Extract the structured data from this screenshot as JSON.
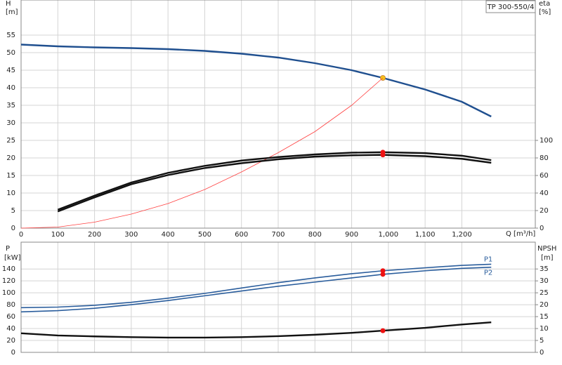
{
  "chart_data": [
    {
      "type": "line",
      "title": "TP 300-550/4",
      "y_label": "H",
      "y_unit": "[m]",
      "y2_label": "eta",
      "y2_unit": "[%]",
      "x_label": "Q [m³/h]",
      "x": [
        0,
        100,
        200,
        300,
        400,
        500,
        600,
        700,
        800,
        900,
        985,
        1100,
        1200,
        1280
      ],
      "xlim": [
        0,
        1400
      ],
      "xticks": [
        0,
        100,
        200,
        300,
        400,
        500,
        600,
        700,
        800,
        900,
        {
          "value": 1000,
          "label": "1,000"
        },
        {
          "value": 1100,
          "label": "1,100"
        },
        {
          "value": 1200,
          "label": "1,200"
        }
      ],
      "ylim": [
        0,
        65
      ],
      "yticks": [
        0,
        5,
        10,
        15,
        20,
        25,
        30,
        35,
        40,
        45,
        50,
        55
      ],
      "y2lim": [
        0,
        260
      ],
      "y2ticks": [
        0,
        20,
        40,
        60,
        80,
        100
      ],
      "grid": true,
      "xtick_labels": true,
      "duty_x": 985,
      "series": [
        {
          "color": "#1f4f8f",
          "line": "thick",
          "marker_color": "#f5c518",
          "values": [
            52.3,
            51.8,
            51.5,
            51.3,
            51.0,
            50.5,
            49.7,
            48.6,
            47.0,
            45.0,
            42.8,
            39.5,
            36.0,
            31.8
          ]
        },
        {
          "color": "#ff4040",
          "line": "thin",
          "values": [
            0,
            0.3,
            1.7,
            4,
            7,
            11,
            16,
            21.5,
            27.5,
            35,
            42.8,
            null,
            null,
            null
          ]
        },
        {
          "color": "#111111",
          "line": "thick",
          "axis": "y2",
          "marker_color": "#ee1111",
          "values": [
            null,
            21,
            37,
            52,
            63,
            71,
            77,
            81,
            84,
            86,
            86.5,
            85.5,
            82.5,
            77.5
          ]
        },
        {
          "color": "#111111",
          "line": "thick",
          "axis": "y2",
          "marker_color": "#ee1111",
          "values": [
            null,
            19,
            35,
            50,
            60.5,
            68.5,
            74,
            78.5,
            81.5,
            83,
            83.5,
            82,
            79,
            74.5
          ]
        }
      ]
    },
    {
      "type": "line",
      "y_label": "P",
      "y_unit": "[kW]",
      "y2_label": "NPSH",
      "y2_unit": "[m]",
      "x": [
        0,
        100,
        200,
        300,
        400,
        500,
        600,
        700,
        800,
        900,
        985,
        1100,
        1200,
        1280
      ],
      "xlim": [
        0,
        1400
      ],
      "xticks": [
        0,
        100,
        200,
        300,
        400,
        500,
        600,
        700,
        800,
        900,
        1000,
        1100,
        1200
      ],
      "ylim": [
        0,
        185
      ],
      "yticks": [
        0,
        20,
        40,
        60,
        80,
        100,
        120,
        140
      ],
      "y2lim": [
        0,
        46.25
      ],
      "y2ticks": [
        0,
        5,
        10,
        15,
        20,
        25,
        30,
        35
      ],
      "grid": true,
      "xtick_labels": false,
      "duty_x": 985,
      "series": [
        {
          "name": "P1",
          "color": "#2a5d9c",
          "line": "normal",
          "marker_color": "#ee1111",
          "values": [
            75,
            76,
            79,
            84,
            91,
            99,
            108,
            117,
            125,
            132,
            137,
            142,
            146,
            148
          ]
        },
        {
          "name": "P2",
          "color": "#2a5d9c",
          "line": "normal",
          "marker_color": "#ee1111",
          "values": [
            68,
            70,
            74,
            80,
            87,
            95,
            103,
            111,
            118,
            125,
            131,
            137,
            141,
            143
          ]
        },
        {
          "color": "#111111",
          "line": "thick",
          "axis": "y2",
          "marker_color": "#ee1111",
          "values": [
            8,
            7.1,
            6.7,
            6.4,
            6.2,
            6.2,
            6.4,
            6.8,
            7.4,
            8.2,
            9.1,
            10.3,
            11.7,
            12.6
          ]
        }
      ]
    }
  ]
}
